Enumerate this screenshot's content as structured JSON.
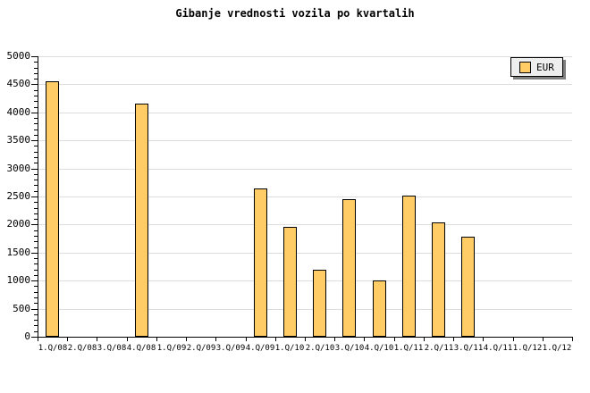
{
  "chart_data": {
    "type": "bar",
    "title": "Gibanje vrednosti vozila po kvartalih",
    "categories": [
      "1.Q/08",
      "2.Q/08",
      "3.Q/08",
      "4.Q/08",
      "1.Q/09",
      "2.Q/09",
      "3.Q/09",
      "4.Q/09",
      "1.Q/10",
      "2.Q/10",
      "3.Q/10",
      "4.Q/10",
      "1.Q/11",
      "2.Q/11",
      "3.Q/11",
      "4.Q/11",
      "1.Q/12",
      "1.Q/12"
    ],
    "series": [
      {
        "name": "EUR",
        "values": [
          4550,
          null,
          null,
          4150,
          null,
          null,
          null,
          2650,
          1960,
          1200,
          2450,
          1000,
          2510,
          2040,
          1780,
          null,
          null,
          null
        ]
      }
    ],
    "xlabel": "",
    "ylabel": "",
    "ylim": [
      0,
      5000
    ],
    "ytick_major": 500,
    "ytick_minor": 100,
    "grid": true,
    "legend_position": "top-right",
    "colors": {
      "bar_fill": "#FFCC66",
      "bar_border": "#000000",
      "gridline": "#DDDDDD",
      "axis": "#000000",
      "legend_bg": "#EEEEEE",
      "legend_shadow": "#808080",
      "background": "#FFFFFF",
      "text": "#000000"
    }
  }
}
